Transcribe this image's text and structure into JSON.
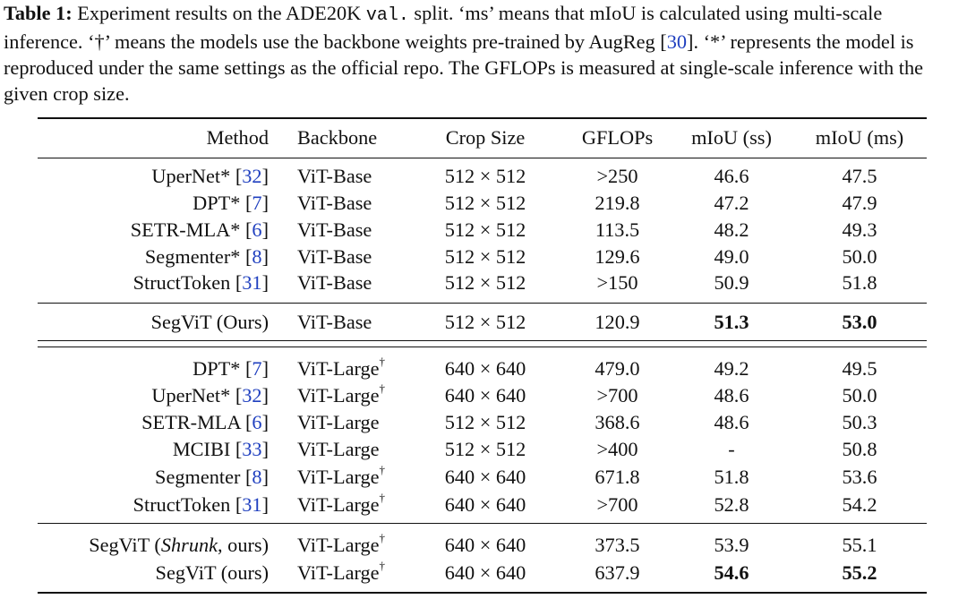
{
  "caption": {
    "label": "Table 1:",
    "text_1": " Experiment results on the ADE20K ",
    "split_code": "val.",
    "text_2": " split. ‘ms’ means that mIoU is calculated using multi-scale inference. ‘†’ means the models use the backbone weights pre-trained by AugReg [",
    "ref_augreg": "30",
    "text_3": "]. ‘*’ represents the model is reproduced under the same settings as the official repo. The GFLOPs is measured at single-scale inference with the given crop size."
  },
  "header": {
    "method": "Method",
    "backbone": "Backbone",
    "crop": "Crop Size",
    "gflops": "GFLOPs",
    "miou_ss": "mIoU (ss)",
    "miou_ms": "mIoU (ms)"
  },
  "rows": [
    {
      "name": "UperNet*",
      "ref": "32",
      "backbone": "ViT-Base",
      "dagger": "",
      "crop": "512 × 512",
      "gflops": ">250",
      "ss": "46.6",
      "ms": "47.5"
    },
    {
      "name": "DPT*",
      "ref": "7",
      "backbone": "ViT-Base",
      "dagger": "",
      "crop": "512 × 512",
      "gflops": "219.8",
      "ss": "47.2",
      "ms": "47.9"
    },
    {
      "name": "SETR-MLA*",
      "ref": "6",
      "backbone": "ViT-Base",
      "dagger": "",
      "crop": "512 × 512",
      "gflops": "113.5",
      "ss": "48.2",
      "ms": "49.3"
    },
    {
      "name": "Segmenter*",
      "ref": "8",
      "backbone": "ViT-Base",
      "dagger": "",
      "crop": "512 × 512",
      "gflops": "129.6",
      "ss": "49.0",
      "ms": "50.0"
    },
    {
      "name": "StructToken",
      "ref": "31",
      "backbone": "ViT-Base",
      "dagger": "",
      "crop": "512 × 512",
      "gflops": ">150",
      "ss": "50.9",
      "ms": "51.8"
    },
    {
      "name": "SegViT (Ours)",
      "ref": "",
      "backbone": "ViT-Base",
      "dagger": "",
      "crop": "512 × 512",
      "gflops": "120.9",
      "ss": "51.3",
      "ms": "53.0"
    },
    {
      "name": "DPT*",
      "ref": "7",
      "backbone": "ViT-Large",
      "dagger": "†",
      "crop": "640 × 640",
      "gflops": "479.0",
      "ss": "49.2",
      "ms": "49.5"
    },
    {
      "name": "UperNet*",
      "ref": "32",
      "backbone": "ViT-Large",
      "dagger": "†",
      "crop": "640 × 640",
      "gflops": ">700",
      "ss": "48.6",
      "ms": "50.0"
    },
    {
      "name": "SETR-MLA",
      "ref": "6",
      "backbone": "ViT-Large",
      "dagger": "",
      "crop": "512 × 512",
      "gflops": "368.6",
      "ss": "48.6",
      "ms": "50.3"
    },
    {
      "name": "MCIBI",
      "ref": "33",
      "backbone": "ViT-Large",
      "dagger": "",
      "crop": "512 × 512",
      "gflops": ">400",
      "ss": "-",
      "ms": "50.8"
    },
    {
      "name": "Segmenter",
      "ref": "8",
      "backbone": "ViT-Large",
      "dagger": "†",
      "crop": "640 × 640",
      "gflops": "671.8",
      "ss": "51.8",
      "ms": "53.6"
    },
    {
      "name": "StructToken",
      "ref": "31",
      "backbone": "ViT-Large",
      "dagger": "†",
      "crop": "640 × 640",
      "gflops": ">700",
      "ss": "52.8",
      "ms": "54.2"
    },
    {
      "name_pre": "SegViT (",
      "name_it": "Shrunk",
      "name_post": ", ours)",
      "backbone": "ViT-Large",
      "dagger": "†",
      "crop": "640 × 640",
      "gflops": "373.5",
      "ss": "53.9",
      "ms": "55.1"
    },
    {
      "name": "SegViT (ours)",
      "ref": "",
      "backbone": "ViT-Large",
      "dagger": "†",
      "crop": "640 × 640",
      "gflops": "637.9",
      "ss": "54.6",
      "ms": "55.2"
    }
  ]
}
